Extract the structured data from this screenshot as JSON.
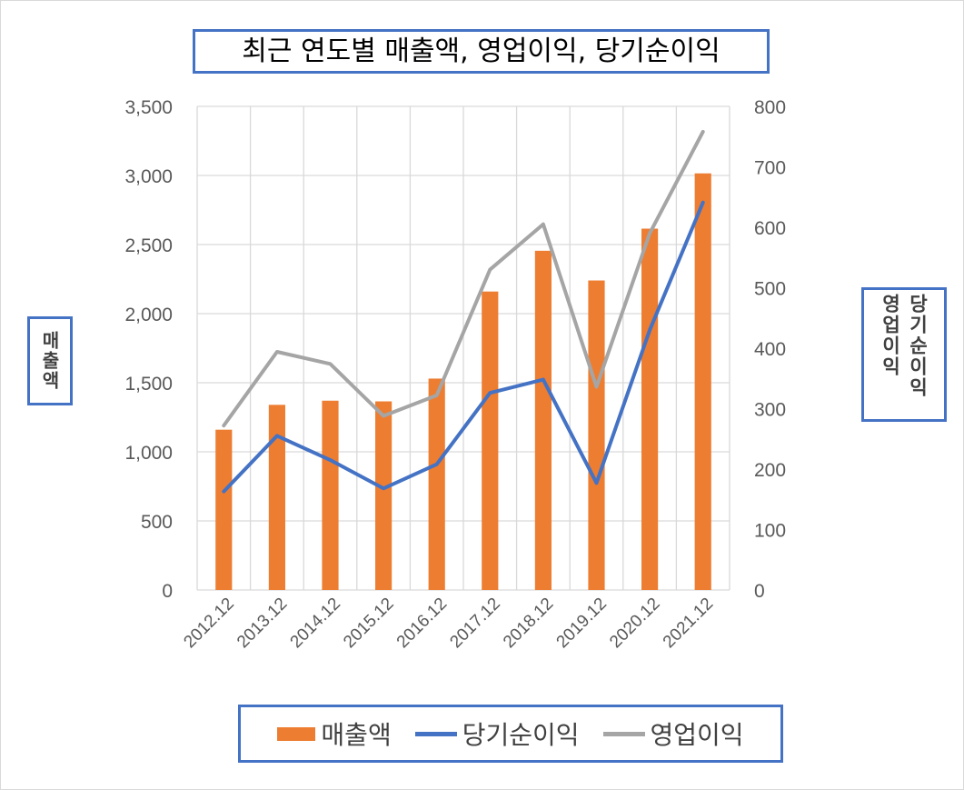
{
  "chart_data": {
    "type": "bar",
    "title": "최근 연도별 매출액, 영업이익, 당기순이익",
    "ylabel_left": "매출액",
    "ylabel_right": "당기순이익 영업이익",
    "categories": [
      "2012.12",
      "2013.12",
      "2014.12",
      "2015.12",
      "2016.12",
      "2017.12",
      "2018.12",
      "2019.12",
      "2020.12",
      "2021.12"
    ],
    "series": [
      {
        "name": "매출액",
        "type": "bar",
        "axis": "left",
        "color": "#ed7d31",
        "values": [
          1160,
          1340,
          1370,
          1365,
          1530,
          2160,
          2455,
          2240,
          2615,
          3015
        ]
      },
      {
        "name": "당기순이익",
        "type": "line",
        "axis": "right",
        "color": "#4472c4",
        "values": [
          163,
          255,
          215,
          168,
          208,
          326,
          348,
          177,
          430,
          641
        ]
      },
      {
        "name": "영업이익",
        "type": "line",
        "axis": "right",
        "color": "#a5a5a5",
        "values": [
          272,
          394,
          374,
          288,
          322,
          530,
          605,
          336,
          590,
          758
        ]
      }
    ],
    "ylim_left": [
      0,
      3500
    ],
    "yticks_left": [
      "0",
      "500",
      "1,000",
      "1,500",
      "2,000",
      "2,500",
      "3,000",
      "3,500"
    ],
    "ylim_right": [
      0,
      800
    ],
    "yticks_right": [
      "0",
      "100",
      "200",
      "300",
      "400",
      "500",
      "600",
      "700",
      "800"
    ],
    "grid": true,
    "legend_position": "bottom"
  }
}
